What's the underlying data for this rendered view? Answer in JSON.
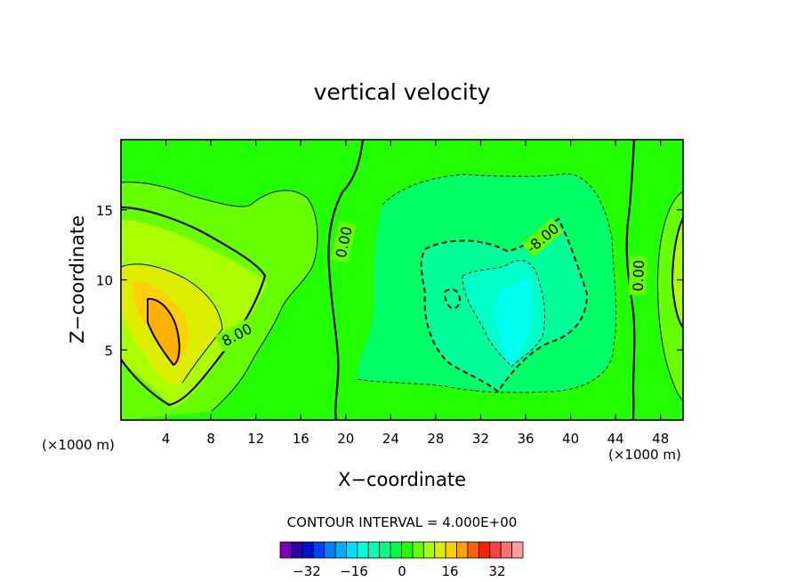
{
  "chart_data": {
    "type": "heatmap",
    "subtype": "filled-contour",
    "title": "vertical velocity",
    "xlabel": "X−coordinate",
    "ylabel": "Z−coordinate",
    "x_unit_left": "(×1000 m)",
    "x_unit_right": "(×1000 m)",
    "xlim": [
      0,
      50
    ],
    "ylim": [
      0,
      20
    ],
    "x_ticks": [
      4,
      8,
      12,
      16,
      20,
      24,
      28,
      32,
      36,
      40,
      44,
      48
    ],
    "y_ticks": [
      5,
      10,
      15
    ],
    "contour_interval_text": "CONTOUR INTERVAL = 4.000E+00",
    "contour_labels": [
      {
        "text": "8.00",
        "x": 10.3,
        "z": 6.1,
        "angle": -28
      },
      {
        "text": "0.00",
        "x": 19.8,
        "z": 12.7,
        "angle": -78
      },
      {
        "text": "-8.00",
        "x": 37.5,
        "z": 13.0,
        "angle": -40
      },
      {
        "text": "0.00",
        "x": 46.0,
        "z": 10.3,
        "angle": -88
      }
    ],
    "colorbar": {
      "levels": [
        -36,
        -32,
        -28,
        -24,
        -20,
        -16,
        -12,
        -8,
        -4,
        0,
        4,
        8,
        12,
        16,
        20,
        24,
        28,
        32,
        36
      ],
      "tick_labels": [
        "−32",
        "−16",
        "0",
        "16",
        "32"
      ],
      "colors": [
        "#7a00b8",
        "#2a00a8",
        "#0010d0",
        "#0040ff",
        "#0080ff",
        "#00b0ff",
        "#00e0ff",
        "#00ffe0",
        "#00ffb0",
        "#00ff80",
        "#00ff40",
        "#20ff00",
        "#66ff00",
        "#aaff00",
        "#ddee00",
        "#ffd000",
        "#ffa000",
        "#ff6000",
        "#ff2000",
        "#ff4040",
        "#ff7070",
        "#ffa0a0"
      ],
      "field_colors": {
        "-16": "#00ffee",
        "-12": "#00ffc8",
        "-8": "#00ff9a",
        "-4": "#00ff66",
        "0": "#22ff00",
        "4": "#66ff00",
        "8": "#aaff00",
        "12": "#ddee00",
        "16": "#ffd000",
        "20": "#ffb000"
      }
    },
    "features": [
      {
        "kind": "updraft",
        "x": 5,
        "z": 8,
        "peak": 20
      },
      {
        "kind": "downdraft",
        "x": 34.5,
        "z": 7,
        "peak": -17
      },
      {
        "kind": "updraft",
        "x": 49.5,
        "z": 9,
        "peak": 10
      }
    ]
  }
}
